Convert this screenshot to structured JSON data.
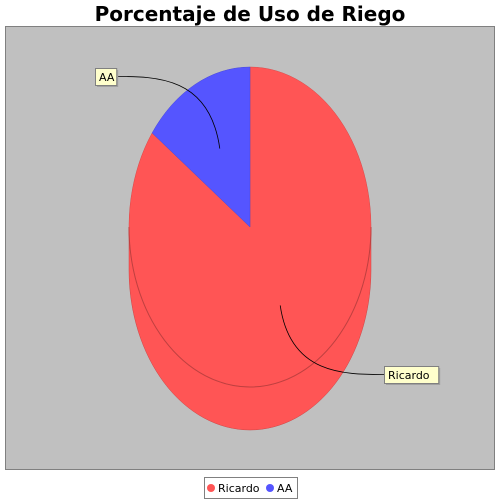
{
  "chart_data": {
    "type": "pie",
    "title": "Porcentaje de Uso de Riego",
    "slices": [
      {
        "label": "Ricardo",
        "value": 85,
        "color": "#ff5555"
      },
      {
        "label": "AA",
        "value": 15,
        "color": "#5555ff"
      }
    ],
    "legend": {
      "placement": "bottom",
      "entries": [
        "Ricardo",
        "AA"
      ]
    },
    "style": {
      "plot_background": "#c0c0c0",
      "label_background": "#ffffcc",
      "three_d": true
    }
  }
}
